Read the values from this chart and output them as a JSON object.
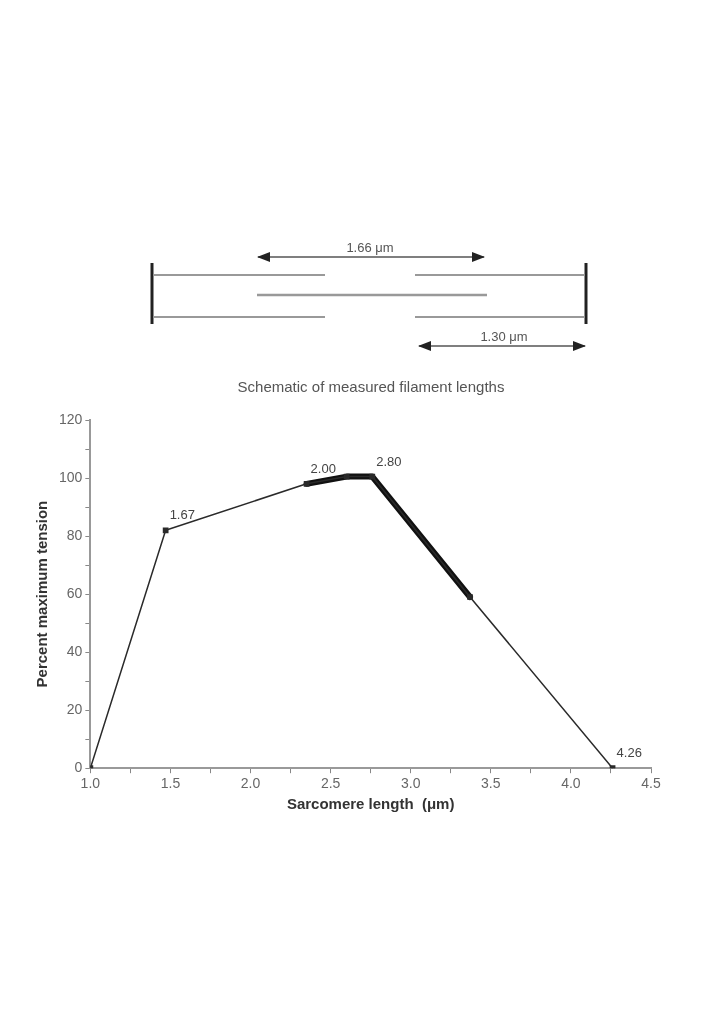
{
  "chart_data": {
    "type": "line",
    "xlabel": "Sarcomere length  (μm)",
    "ylabel": "Percent maximum tension",
    "xlim": [
      1.0,
      4.5
    ],
    "xticks": [
      {
        "value": 1.0,
        "label": "1.0"
      },
      {
        "value": 1.25,
        "label": null
      },
      {
        "value": 1.5,
        "label": "1.5"
      },
      {
        "value": 1.75,
        "label": null
      },
      {
        "value": 2.0,
        "label": "2.0"
      },
      {
        "value": 2.25,
        "label": null
      },
      {
        "value": 2.5,
        "label": "2.5"
      },
      {
        "value": 2.75,
        "label": null
      },
      {
        "value": 3.0,
        "label": "3.0"
      },
      {
        "value": 3.25,
        "label": null
      },
      {
        "value": 3.5,
        "label": "3.5"
      },
      {
        "value": 3.75,
        "label": null
      },
      {
        "value": 4.0,
        "label": "4.0"
      },
      {
        "value": 4.25,
        "label": null
      },
      {
        "value": 4.5,
        "label": "4.5"
      }
    ],
    "ylim": [
      0,
      120
    ],
    "yticks": [
      0,
      {
        "value": 10,
        "label": null
      },
      20,
      {
        "value": 30,
        "label": null
      },
      40,
      {
        "value": 50,
        "label": null
      },
      60,
      {
        "value": 70,
        "label": null
      },
      80,
      {
        "value": 90,
        "label": null
      },
      100,
      {
        "value": 110,
        "label": null
      },
      120
    ],
    "series": [
      {
        "color": "#2a2a2a",
        "x": [
          1.0,
          1.47,
          2.35,
          2.6,
          2.76,
          3.37,
          4.26
        ],
        "values": [
          0,
          82,
          98,
          100.5,
          100.5,
          59,
          0
        ],
        "marker": "square"
      },
      {
        "color": "#111111",
        "x": [
          2.35,
          2.6,
          2.76,
          3.37
        ],
        "values": [
          98,
          100.5,
          100.5,
          59
        ],
        "marker": "none"
      }
    ],
    "grid": false,
    "legend": false,
    "line_style": "solid",
    "annotations": [
      {
        "text": "1.67",
        "x": 1.47,
        "y": 82
      },
      {
        "text": "2.00",
        "x": 2.35,
        "y": 98
      },
      {
        "text": "2.80",
        "x": 2.76,
        "y": 100.5
      },
      {
        "text": "4.26",
        "x": 4.26,
        "y": 0
      },
      "1.66 μm",
      "1.30 μm",
      "Schematic of measured filament lengths"
    ]
  }
}
